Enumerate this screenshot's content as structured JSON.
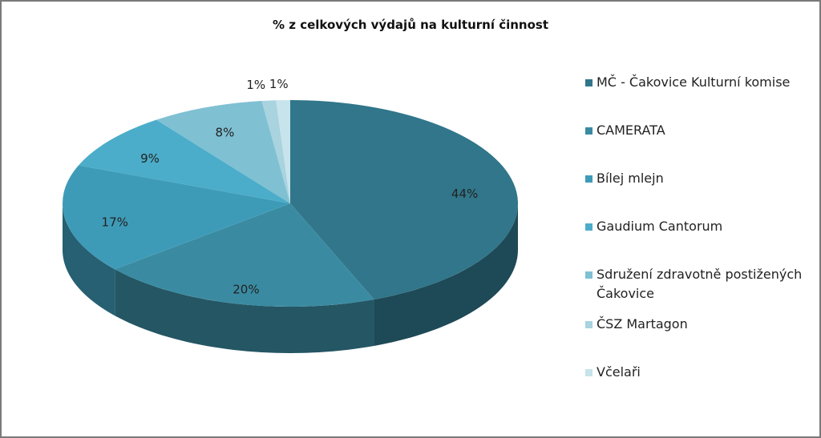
{
  "chart_data": {
    "type": "pie",
    "title": "% z celkových výdajů na kulturní činnost",
    "categories": [
      "MČ - Čakovice Kulturní komise",
      "CAMERATA",
      "Bílej mlejn",
      "Gaudium Cantorum",
      "Sdružení zdravotně postižených Čakovice",
      "ČSZ Martagon",
      "Včelaři"
    ],
    "values": [
      44,
      20,
      17,
      9,
      8,
      1,
      1
    ],
    "value_labels": [
      "44%",
      "20%",
      "17%",
      "9%",
      "8%",
      "1%",
      "1%"
    ],
    "colors": [
      "#31768a",
      "#3a8ba2",
      "#3e9bb8",
      "#4badc9",
      "#80c0d3",
      "#a8d3df",
      "#c7e3eb"
    ],
    "legend": "right"
  }
}
